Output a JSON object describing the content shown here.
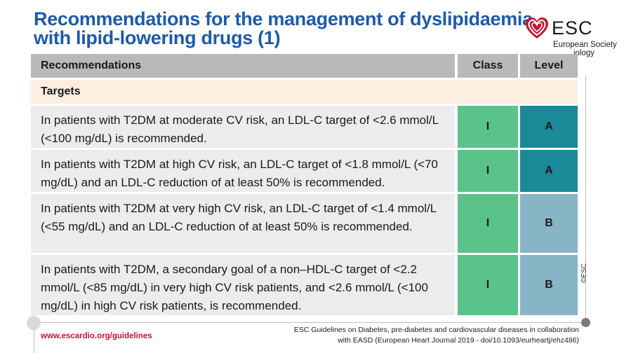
{
  "title": {
    "line1": "Recommendations for the management of dyslipidaemia",
    "line2": "with lipid-lowering drugs (1)"
  },
  "logo": {
    "name": "ESC",
    "subtitle_line1": "European Society",
    "subtitle_line2": "iology",
    "icon": "heart-logo-icon",
    "color": "#c0152f"
  },
  "table": {
    "headers": {
      "recommendations": "Recommendations",
      "class": "Class",
      "level": "Level"
    },
    "section": "Targets",
    "rows": [
      {
        "text": "In patients with T2DM at moderate CV risk, an LDL-C target of <2.6 mmol/L (<100 mg/dL) is recommended.",
        "class": "I",
        "level": "A"
      },
      {
        "text": "In patients with T2DM at high CV risk, an LDL-C target of <1.8 mmol/L (<70 mg/dL) and an LDL-C reduction of at least 50% is recommended.",
        "class": "I",
        "level": "A"
      },
      {
        "text": "In patients with T2DM at very high CV risk, an LDL-C target of <1.4 mmol/L (<55 mg/dL) and an LDL-C reduction of at least 50% is recommended.",
        "class": "I",
        "level": "B"
      },
      {
        "text": "In patients with T2DM, a secondary goal of a non–HDL-C target of <2.2 mmol/L (<85 mg/dL) in very high CV risk patients, and <2.6 mmol/L (<100 mg/dL) in high CV risk patients, is recommended.",
        "class": "I",
        "level": "B"
      }
    ]
  },
  "copyright": "©ESC",
  "footer": {
    "url": "www.escardio.org/guidelines",
    "reference_line1": "ESC Guidelines on Diabetes, pre-diabetes and cardiovascular diseases in collaboration",
    "reference_line2": "with EASD (European Heart Journal 2019 - doi/10.1093/eurheartj/ehz486)"
  },
  "colors": {
    "title": "#1e5aa8",
    "class_I": "#5ac38a",
    "level_A": "#1a8a99",
    "level_B": "#88b5c5",
    "header_bg": "#b9b9b9",
    "section_bg": "#fdeee2",
    "row_bg": "#ececec",
    "url": "#c0152f"
  }
}
